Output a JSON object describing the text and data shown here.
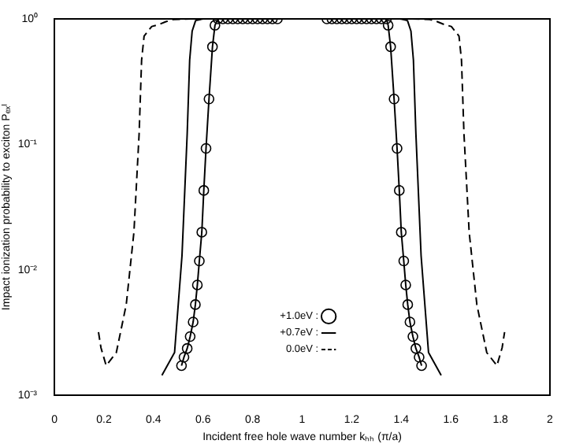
{
  "chart_data": {
    "type": "line",
    "xlabel": "Incident free hole wave number kₕₕ (π/a)",
    "ylabel": "Impact ionization probability to exciton Pₑₓᴵ",
    "log": "y",
    "xlim": [
      0,
      2
    ],
    "ylim": [
      0.001,
      1
    ],
    "xticks": [
      0,
      0.2,
      0.4,
      0.6,
      0.8,
      1,
      1.2,
      1.4,
      1.6,
      1.8,
      2
    ],
    "yticks": [
      {
        "value": 0.001,
        "label": "10⁻³"
      },
      {
        "value": 0.01,
        "label": "10⁻²"
      },
      {
        "value": 0.1,
        "label": "10⁻¹"
      },
      {
        "value": 1,
        "label": "10⁰"
      }
    ],
    "grid": false,
    "legend": "bottom",
    "series": [
      {
        "name": "+1.0eV :",
        "color": "#000000",
        "marker": "circle",
        "line_style": "solid",
        "x": [
          0.513,
          0.523,
          0.536,
          0.548,
          0.56,
          0.569,
          0.577,
          0.585,
          0.595,
          0.603,
          0.612,
          0.624,
          0.638,
          0.648,
          0.66,
          0.68,
          0.7,
          0.72,
          0.74,
          0.76,
          0.78,
          0.8,
          0.82,
          0.84,
          0.86,
          0.88,
          0.9,
          1.1,
          1.12,
          1.14,
          1.16,
          1.18,
          1.2,
          1.22,
          1.24,
          1.26,
          1.28,
          1.3,
          1.32,
          1.34,
          1.347,
          1.357,
          1.371,
          1.383,
          1.392,
          1.4,
          1.41,
          1.418,
          1.426,
          1.435,
          1.447,
          1.459,
          1.472,
          1.482
        ],
        "values": [
          0.00173,
          0.00202,
          0.00237,
          0.00295,
          0.00385,
          0.0053,
          0.0076,
          0.0118,
          0.02,
          0.043,
          0.093,
          0.23,
          0.6,
          0.89,
          1,
          1,
          1,
          1,
          1,
          1,
          1,
          1,
          1,
          1,
          1,
          1,
          1,
          1,
          1,
          1,
          1,
          1,
          1,
          1,
          1,
          1,
          1,
          1,
          1,
          1,
          0.89,
          0.6,
          0.23,
          0.093,
          0.043,
          0.02,
          0.0118,
          0.0076,
          0.0053,
          0.00385,
          0.00295,
          0.00237,
          0.00202,
          0.00173
        ]
      },
      {
        "name": "+0.7eV :",
        "color": "#000000",
        "marker": "none",
        "line_style": "solid",
        "x": [
          0.434,
          0.485,
          0.515,
          0.536,
          0.546,
          0.556,
          0.57,
          0.6,
          1.395,
          1.425,
          1.439,
          1.449,
          1.459,
          1.48,
          1.51,
          1.561
        ],
        "values": [
          0.00145,
          0.0022,
          0.013,
          0.122,
          0.47,
          0.8,
          0.97,
          1,
          1,
          0.97,
          0.8,
          0.47,
          0.122,
          0.013,
          0.0022,
          0.00145
        ]
      },
      {
        "name": "0.0eV :",
        "color": "#000000",
        "marker": "none",
        "line_style": "dashed",
        "x": [
          0.178,
          0.188,
          0.209,
          0.25,
          0.29,
          0.321,
          0.342,
          0.352,
          0.362,
          0.393,
          0.42,
          0.45,
          0.48,
          0.55,
          1.445,
          1.515,
          1.545,
          1.575,
          1.602,
          1.633,
          1.643,
          1.653,
          1.674,
          1.705,
          1.745,
          1.786,
          1.807,
          1.817
        ],
        "values": [
          0.0032,
          0.0024,
          0.00173,
          0.0022,
          0.0053,
          0.02,
          0.122,
          0.47,
          0.73,
          0.87,
          0.9,
          0.95,
          0.99,
          1,
          1,
          0.99,
          0.95,
          0.9,
          0.87,
          0.73,
          0.47,
          0.122,
          0.02,
          0.0053,
          0.0022,
          0.00173,
          0.0024,
          0.0032
        ]
      }
    ]
  }
}
